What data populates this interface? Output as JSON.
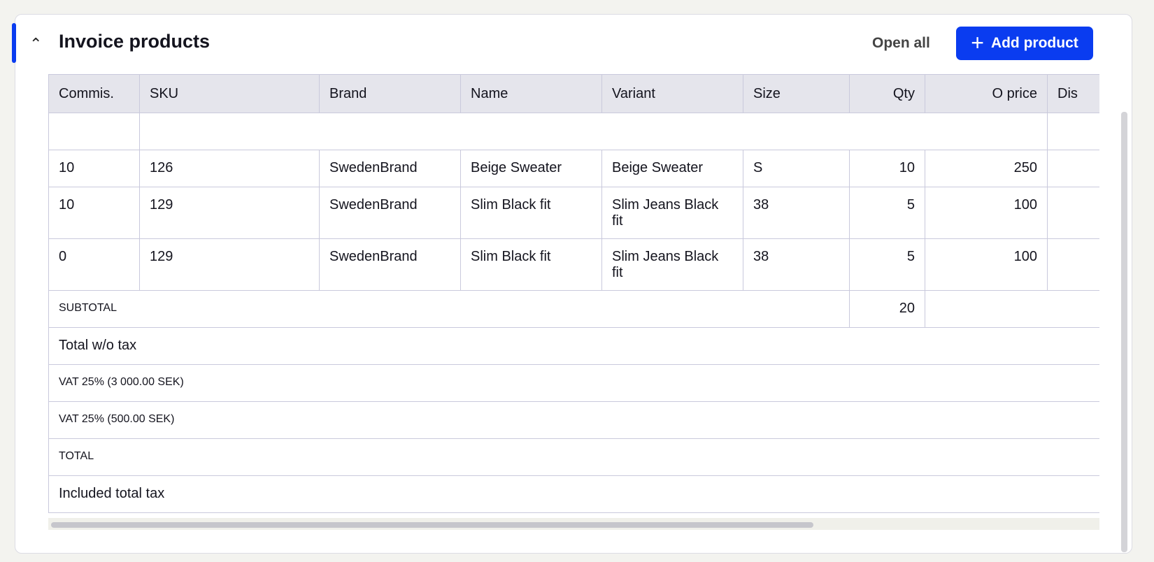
{
  "header": {
    "title": "Invoice products",
    "open_all": "Open all",
    "add_product": "Add product",
    "collapse_icon": "chevron-up-icon",
    "add_icon": "plus-icon",
    "accent_color": "#0a3cf0"
  },
  "table": {
    "columns": [
      "Commis.",
      "SKU",
      "Brand",
      "Name",
      "Variant",
      "Size",
      "Qty",
      "O price",
      "Dis"
    ],
    "rows": [
      {
        "commis": "10",
        "sku": "126",
        "brand": "SwedenBrand",
        "name": "Beige Sweater",
        "variant": "Beige Sweater",
        "size": "S",
        "qty": "10",
        "oprice": "250"
      },
      {
        "commis": "10",
        "sku": "129",
        "brand": "SwedenBrand",
        "name": "Slim Black fit",
        "variant": "Slim Jeans Black fit",
        "size": "38",
        "qty": "5",
        "oprice": "100"
      },
      {
        "commis": "0",
        "sku": "129",
        "brand": "SwedenBrand",
        "name": "Slim Black fit",
        "variant": "Slim Jeans Black fit",
        "size": "38",
        "qty": "5",
        "oprice": "100"
      }
    ],
    "subtotal": {
      "label": "SUBTOTAL",
      "qty": "20"
    },
    "summary": [
      "Total w/o tax",
      "VAT 25% (3 000.00 SEK)",
      "VAT 25% (500.00 SEK)",
      "TOTAL",
      "Included total tax"
    ]
  }
}
